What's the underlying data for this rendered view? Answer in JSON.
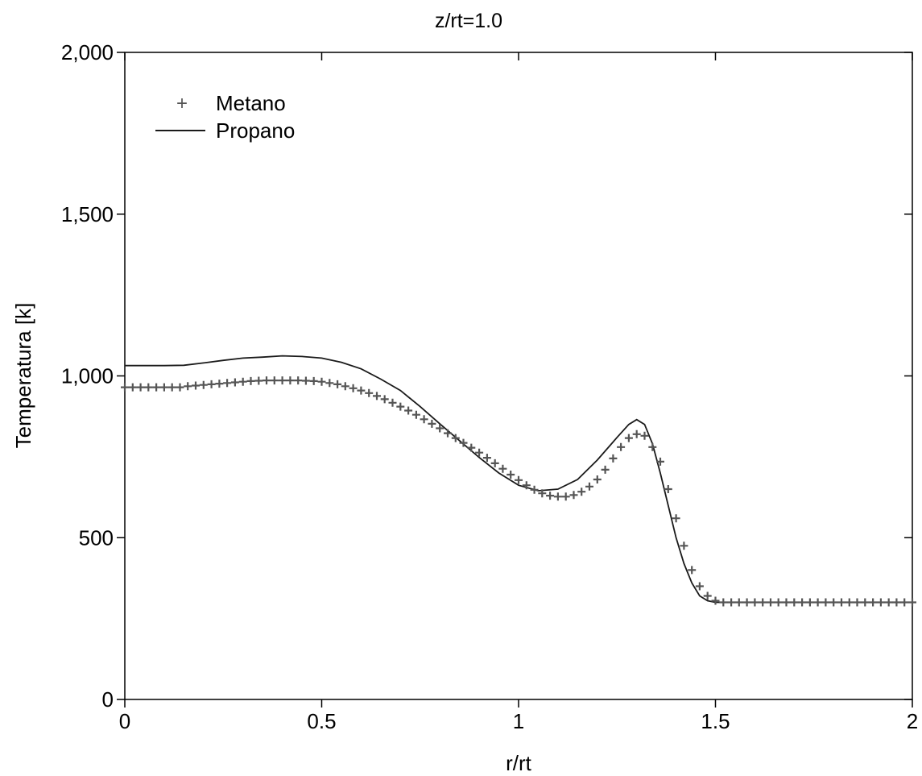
{
  "chart_data": {
    "type": "scatter",
    "title": "z/rt=1.0",
    "xlabel": "r/rt",
    "ylabel": "Temperatura [k]",
    "xlim": [
      0,
      2
    ],
    "ylim": [
      0,
      2000
    ],
    "x_ticks": [
      0,
      0.5,
      1,
      1.5,
      2
    ],
    "x_tick_labels": [
      "0",
      "0.5",
      "1",
      "1.5",
      "2"
    ],
    "y_ticks": [
      0,
      500,
      1000,
      1500,
      2000
    ],
    "y_tick_labels": [
      "0",
      "500",
      "1,000",
      "1,500",
      "2,000"
    ],
    "grid": false,
    "legend_position": "top-left",
    "series": [
      {
        "name": "Metano",
        "style": "markers-plus",
        "color": "#555555",
        "x": [
          0.0,
          0.02,
          0.04,
          0.06,
          0.08,
          0.1,
          0.12,
          0.14,
          0.16,
          0.18,
          0.2,
          0.22,
          0.24,
          0.26,
          0.28,
          0.3,
          0.32,
          0.34,
          0.36,
          0.38,
          0.4,
          0.42,
          0.44,
          0.46,
          0.48,
          0.5,
          0.52,
          0.54,
          0.56,
          0.58,
          0.6,
          0.62,
          0.64,
          0.66,
          0.68,
          0.7,
          0.72,
          0.74,
          0.76,
          0.78,
          0.8,
          0.82,
          0.84,
          0.86,
          0.88,
          0.9,
          0.92,
          0.94,
          0.96,
          0.98,
          1.0,
          1.02,
          1.04,
          1.06,
          1.08,
          1.1,
          1.12,
          1.14,
          1.16,
          1.18,
          1.2,
          1.22,
          1.24,
          1.26,
          1.28,
          1.3,
          1.32,
          1.34,
          1.36,
          1.38,
          1.4,
          1.42,
          1.44,
          1.46,
          1.48,
          1.5,
          1.52,
          1.54,
          1.56,
          1.58,
          1.6,
          1.62,
          1.64,
          1.66,
          1.68,
          1.7,
          1.72,
          1.74,
          1.76,
          1.78,
          1.8,
          1.82,
          1.84,
          1.86,
          1.88,
          1.9,
          1.92,
          1.94,
          1.96,
          1.98,
          2.0
        ],
        "y": [
          965,
          965,
          965,
          965,
          965,
          965,
          965,
          965,
          968,
          970,
          972,
          974,
          976,
          978,
          980,
          982,
          984,
          985,
          986,
          986,
          986,
          986,
          986,
          985,
          984,
          982,
          978,
          974,
          968,
          962,
          955,
          947,
          938,
          928,
          917,
          905,
          893,
          880,
          866,
          852,
          838,
          823,
          808,
          793,
          778,
          763,
          747,
          730,
          713,
          695,
          678,
          662,
          648,
          637,
          630,
          627,
          627,
          632,
          642,
          658,
          680,
          710,
          745,
          780,
          808,
          820,
          815,
          780,
          735,
          650,
          560,
          475,
          400,
          350,
          320,
          305,
          300,
          300,
          300,
          300,
          300,
          300,
          300,
          300,
          300,
          300,
          300,
          300,
          300,
          300,
          300,
          300,
          300,
          300,
          300,
          300,
          300,
          300,
          300,
          300,
          300
        ]
      },
      {
        "name": "Propano",
        "style": "line",
        "color": "#1a1a1a",
        "x": [
          0.0,
          0.05,
          0.1,
          0.15,
          0.2,
          0.25,
          0.3,
          0.35,
          0.4,
          0.45,
          0.5,
          0.55,
          0.6,
          0.65,
          0.7,
          0.75,
          0.8,
          0.85,
          0.9,
          0.95,
          1.0,
          1.05,
          1.1,
          1.15,
          1.2,
          1.25,
          1.28,
          1.3,
          1.32,
          1.34,
          1.36,
          1.38,
          1.4,
          1.42,
          1.44,
          1.46,
          1.48,
          1.5,
          1.55,
          1.6,
          1.7,
          1.8,
          1.9,
          2.0
        ],
        "y": [
          1032,
          1032,
          1032,
          1033,
          1040,
          1048,
          1055,
          1058,
          1062,
          1060,
          1055,
          1042,
          1022,
          990,
          955,
          905,
          852,
          800,
          748,
          700,
          662,
          645,
          650,
          680,
          740,
          810,
          850,
          865,
          850,
          790,
          700,
          600,
          500,
          420,
          360,
          320,
          305,
          300,
          300,
          300,
          300,
          300,
          300,
          300
        ]
      }
    ]
  }
}
